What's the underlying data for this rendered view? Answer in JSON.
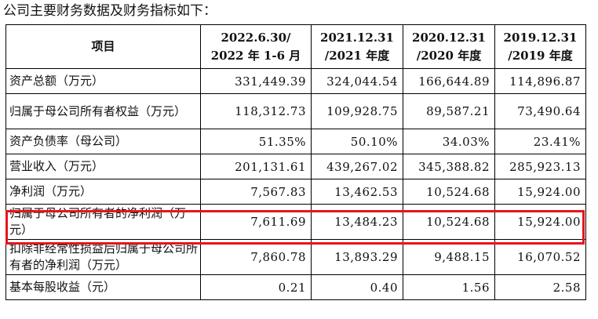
{
  "intro": "公司主要财务数据及财务指标如下：",
  "table": {
    "headers": [
      {
        "lines": [
          "项目"
        ]
      },
      {
        "lines": [
          "2022.6.30/",
          "2022 年 1-6 月"
        ]
      },
      {
        "lines": [
          "2021.12.31",
          "/2021 年度"
        ]
      },
      {
        "lines": [
          "2020.12.31",
          "/2020 年度"
        ]
      },
      {
        "lines": [
          "2019.12.31",
          "/2019 年度"
        ]
      }
    ],
    "rows": [
      {
        "label": "资产总额（万元）",
        "values": [
          "331,449.39",
          "324,044.54",
          "166,644.89",
          "114,896.87"
        ]
      },
      {
        "label": "归属于母公司所有者权益（万元）",
        "values": [
          "118,312.73",
          "109,928.75",
          "89,587.21",
          "73,490.64"
        ]
      },
      {
        "label": "资产负债率（母公司）",
        "values": [
          "51.35%",
          "50.10%",
          "34.03%",
          "23.41%"
        ]
      },
      {
        "label": "营业收入（万元）",
        "values": [
          "201,131.61",
          "439,267.02",
          "345,388.82",
          "285,923.13"
        ]
      },
      {
        "label": "净利润（万元）",
        "values": [
          "7,567.83",
          "13,462.53",
          "10,524.68",
          "15,924.00"
        ]
      },
      {
        "label": "归属于母公司所有者的净利润（万元）",
        "values": [
          "7,611.69",
          "13,484.23",
          "10,524.68",
          "15,924.00"
        ]
      },
      {
        "label": "扣除非经常性损益后归属于母公司所有者的净利润（万元）",
        "values": [
          "7,860.78",
          "13,893.29",
          "9,488.15",
          "16,070.52"
        ]
      },
      {
        "label": "基本每股收益（元）",
        "values": [
          "0.21",
          "0.40",
          "1.56",
          "2.58"
        ]
      }
    ]
  },
  "colors": {
    "highlight": "#e8141a",
    "border": "#000000",
    "text": "#111111"
  }
}
